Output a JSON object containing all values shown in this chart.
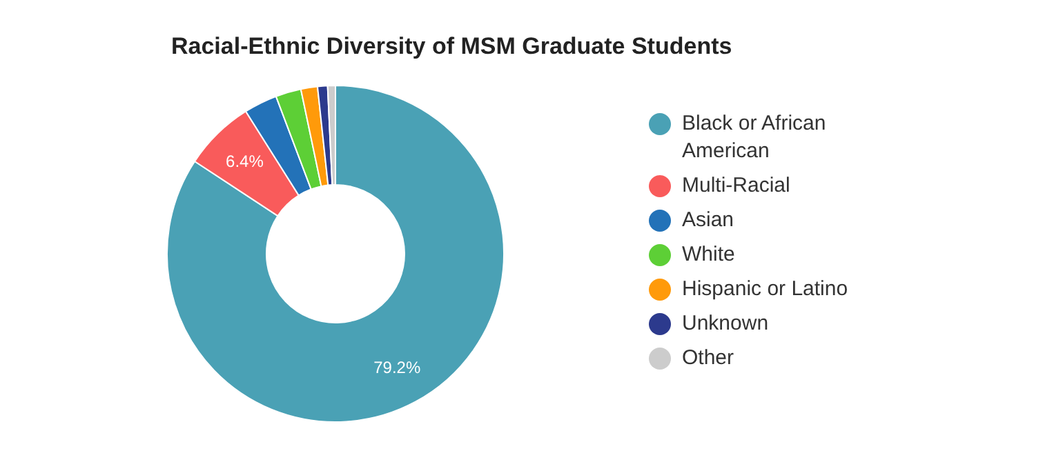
{
  "chart_data": {
    "type": "donut",
    "title": "Racial-Ethnic Diversity of MSM Graduate Students",
    "categories": [
      "Black or African American",
      "Multi-Racial",
      "Asian",
      "White",
      "Hispanic or Latino",
      "Unknown",
      "Other"
    ],
    "values": [
      79.2,
      6.4,
      3.0,
      2.3,
      1.5,
      0.9,
      0.7
    ],
    "colors": [
      "#4aa1b5",
      "#f95b5b",
      "#2372b8",
      "#5dcf36",
      "#ff9a0a",
      "#2c3a8d",
      "#cccccc"
    ],
    "value_labels": [
      "79.2%",
      "6.4%",
      null,
      null,
      null,
      null,
      null
    ],
    "legend": "right"
  }
}
